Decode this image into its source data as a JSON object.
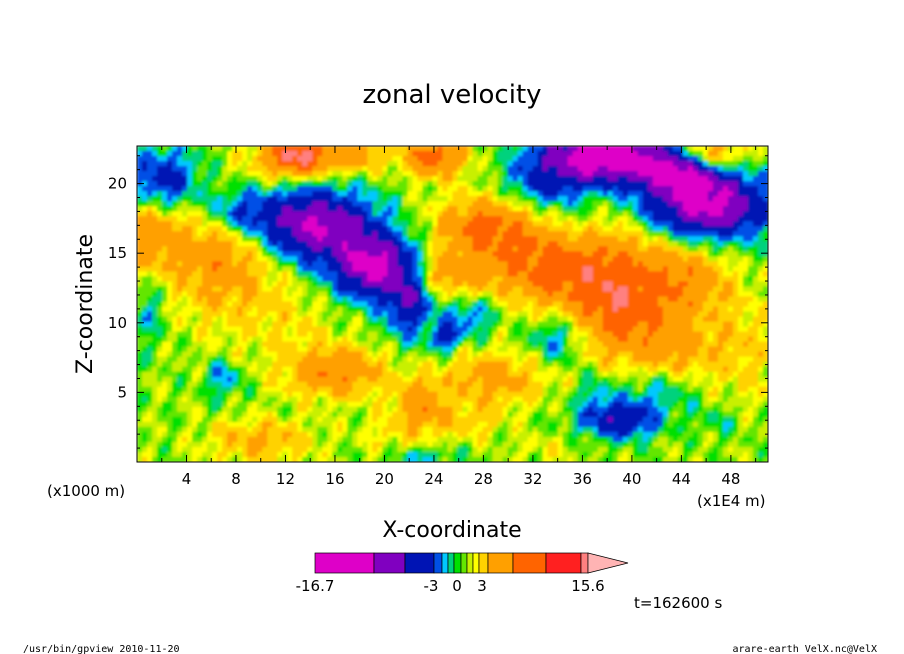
{
  "chart_data": {
    "type": "heatmap",
    "title": "zonal velocity",
    "xlabel": "X-coordinate",
    "ylabel": "Z-coordinate",
    "x_unit_left": "(x1000 m)",
    "x_unit_right": "(x1E4 m)",
    "x_ticks": [
      4,
      8,
      12,
      16,
      20,
      24,
      28,
      32,
      36,
      40,
      44,
      48
    ],
    "y_ticks": [
      5,
      10,
      15,
      20
    ],
    "xlim": [
      0,
      51
    ],
    "ylim": [
      0,
      22.7
    ],
    "grid": false,
    "colorbar": {
      "labels": [
        "-16.7",
        "-3",
        "0",
        "3",
        "15.6"
      ],
      "levels": [
        -16.7,
        -12.6,
        -9,
        -5,
        -3,
        -2,
        -1,
        0,
        1,
        2,
        3,
        5,
        9,
        12.6,
        15.6
      ],
      "colors": [
        "#de00c8",
        "#8000c0",
        "#0014b4",
        "#0050e6",
        "#00c8ff",
        "#00d27d",
        "#00e000",
        "#64e600",
        "#c8f000",
        "#ffff00",
        "#ffd200",
        "#ffa000",
        "#ff6400",
        "#ff2020",
        "#ff8080",
        "#ffb4b4"
      ]
    },
    "time_label": "t=162600 s"
  },
  "footer": {
    "left": "/usr/bin/gpview  2010-11-20",
    "right": "arare-earth_VelX.nc@VelX"
  }
}
